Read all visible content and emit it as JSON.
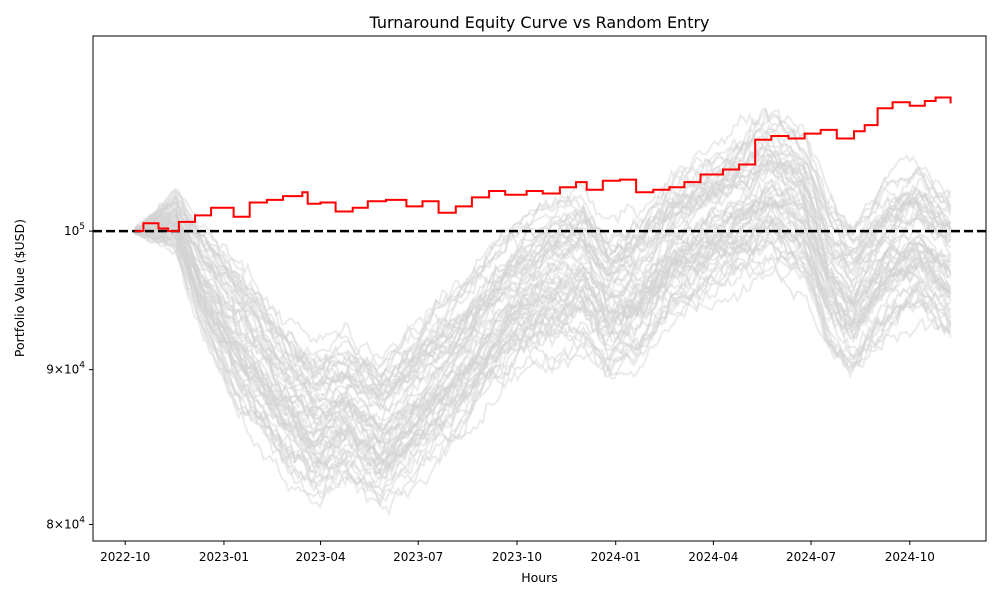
{
  "chart_data": {
    "type": "line",
    "title": "Turnaround Equity Curve vs Random Entry",
    "xlabel": "Hours",
    "ylabel": "Portfolio Value ($USD)",
    "y_scale": "log",
    "ylim": [
      79000,
      116000
    ],
    "xlim": [
      "2022-09-01",
      "2024-12-11"
    ],
    "x_ticks": [
      "2022-10",
      "2023-01",
      "2023-04",
      "2023-07",
      "2023-10",
      "2024-01",
      "2024-04",
      "2024-07",
      "2024-10"
    ],
    "y_ticks": [
      {
        "value": 100000,
        "base": "10",
        "exp": "5"
      },
      {
        "value": 90000,
        "mant": "9",
        "base": "10",
        "exp": "4"
      },
      {
        "value": 80000,
        "mant": "8",
        "base": "10",
        "exp": "4"
      }
    ],
    "baseline": 100000,
    "legend": "none",
    "grid": false,
    "colors": {
      "strategy": "#ff0000",
      "random": "#d3d3d3",
      "baseline": "#000000"
    },
    "strategy": {
      "x": [
        "2022-10-10",
        "2022-10-18",
        "2022-11-01",
        "2022-11-10",
        "2022-11-20",
        "2022-12-05",
        "2022-12-20",
        "2023-01-10",
        "2023-01-25",
        "2023-02-10",
        "2023-02-25",
        "2023-03-15",
        "2023-03-20",
        "2023-04-01",
        "2023-04-15",
        "2023-05-01",
        "2023-05-15",
        "2023-06-01",
        "2023-06-20",
        "2023-07-05",
        "2023-07-20",
        "2023-08-05",
        "2023-08-20",
        "2023-09-05",
        "2023-09-20",
        "2023-10-10",
        "2023-10-25",
        "2023-11-10",
        "2023-11-25",
        "2023-12-05",
        "2023-12-20",
        "2024-01-05",
        "2024-01-20",
        "2024-02-05",
        "2024-02-20",
        "2024-03-05",
        "2024-03-20",
        "2024-04-10",
        "2024-04-25",
        "2024-05-10",
        "2024-05-25",
        "2024-06-10",
        "2024-06-25",
        "2024-07-10",
        "2024-07-25",
        "2024-08-10",
        "2024-08-20",
        "2024-09-01",
        "2024-09-15",
        "2024-10-01",
        "2024-10-15",
        "2024-10-25",
        "2024-11-08"
      ],
      "y": [
        100000,
        100600,
        100200,
        100000,
        100700,
        101200,
        101800,
        101100,
        102200,
        102400,
        102700,
        103000,
        102100,
        102200,
        101500,
        101800,
        102300,
        102400,
        101900,
        102300,
        101400,
        101900,
        102600,
        103100,
        102800,
        103100,
        102900,
        103400,
        103800,
        103200,
        103900,
        104000,
        103000,
        103200,
        103400,
        103800,
        104400,
        104800,
        105200,
        107200,
        107500,
        107300,
        107700,
        108000,
        107300,
        107900,
        108400,
        109800,
        110300,
        110000,
        110400,
        110700,
        110200
      ]
    }
  }
}
